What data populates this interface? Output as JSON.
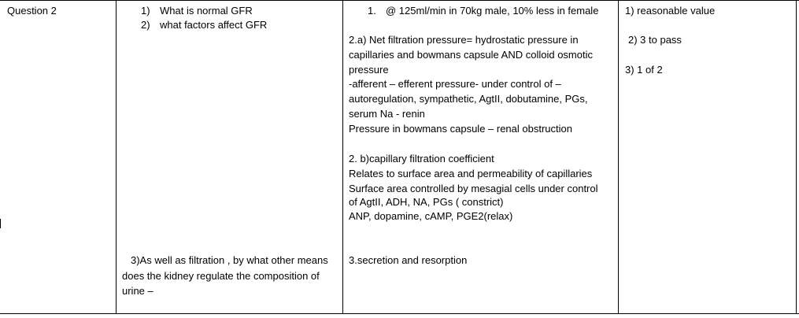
{
  "row": {
    "label": "Question 2",
    "questions": [
      {
        "num": "1)",
        "text": "What is normal GFR"
      },
      {
        "num": "2)",
        "text": "what factors affect GFR"
      }
    ],
    "question3": {
      "line1": "3)As well as filtration , by what other means",
      "line2": "does the kidney regulate the composition of",
      "line3": "urine –"
    },
    "answer1": {
      "num": "1.",
      "text": "@ 125ml/min in 70kg male, 10% less in female"
    },
    "answer2a": [
      "2.a) Net filtration pressure= hydrostatic pressure in",
      "capillaries and bowmans capsule AND colloid osmotic",
      "pressure",
      "-afferent – efferent pressure- under control of –",
      "autoregulation, sympathetic, AgtII, dobutamine, PGs,",
      "serum Na - renin",
      "Pressure in bowmans capsule – renal obstruction"
    ],
    "answer2b": [
      "2. b)capillary filtration coefficient",
      "Relates to surface area and permeability of capillaries",
      "Surface area controlled by mesagial cells under control",
      "of AgtII, ADH, NA, PGs ( constrict)",
      "ANP, dopamine, cAMP, PGE2(relax)"
    ],
    "answer3": "3.secretion and resorption",
    "marks": [
      "1) reasonable value",
      "2) 3 to pass",
      "3) 1 of 2"
    ]
  }
}
